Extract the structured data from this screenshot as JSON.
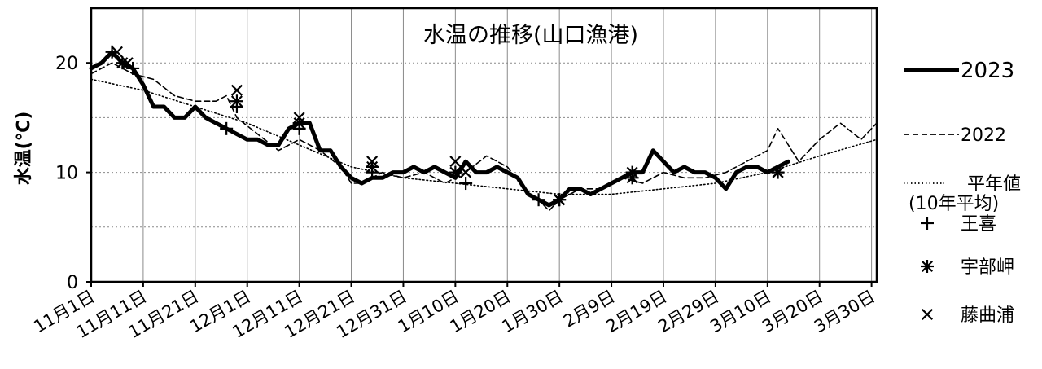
{
  "chart_data": {
    "type": "line",
    "title": "水温の推移(山口漁港)",
    "ylabel": "水温(℃)",
    "xlabel": "",
    "ylim": [
      0,
      25
    ],
    "yticks": [
      0,
      10,
      20
    ],
    "xlim": [
      0,
      151
    ],
    "x_tick_labels": [
      "11月1日",
      "11月11日",
      "11月21日",
      "12月1日",
      "12月11日",
      "12月21日",
      "12月31日",
      "1月10日",
      "1月20日",
      "1月30日",
      "2月9日",
      "2月19日",
      "2月29日",
      "3月10日",
      "3月20日",
      "3月30日"
    ],
    "x_tick_days": [
      0,
      10,
      20,
      30,
      40,
      50,
      60,
      70,
      80,
      90,
      100,
      110,
      120,
      130,
      140,
      150
    ],
    "grid": true,
    "legend_position": "right",
    "series": [
      {
        "name": "2023",
        "style": "solid-thick",
        "color": "#000000",
        "points": [
          [
            0,
            19.5
          ],
          [
            2,
            20.0
          ],
          [
            4,
            21.0
          ],
          [
            6,
            20.0
          ],
          [
            8,
            19.5
          ],
          [
            10,
            18.0
          ],
          [
            12,
            16.0
          ],
          [
            14,
            16.0
          ],
          [
            16,
            15.0
          ],
          [
            18,
            15.0
          ],
          [
            20,
            16.0
          ],
          [
            22,
            15.0
          ],
          [
            24,
            14.5
          ],
          [
            26,
            14.0
          ],
          [
            28,
            13.5
          ],
          [
            30,
            13.0
          ],
          [
            32,
            13.0
          ],
          [
            34,
            12.5
          ],
          [
            36,
            12.5
          ],
          [
            38,
            14.0
          ],
          [
            40,
            14.5
          ],
          [
            42,
            14.5
          ],
          [
            44,
            12.0
          ],
          [
            46,
            12.0
          ],
          [
            48,
            10.5
          ],
          [
            50,
            9.5
          ],
          [
            52,
            9.0
          ],
          [
            54,
            9.5
          ],
          [
            56,
            9.5
          ],
          [
            58,
            10.0
          ],
          [
            60,
            10.0
          ],
          [
            62,
            10.5
          ],
          [
            64,
            10.0
          ],
          [
            66,
            10.5
          ],
          [
            68,
            10.0
          ],
          [
            70,
            9.5
          ],
          [
            72,
            11.0
          ],
          [
            74,
            10.0
          ],
          [
            76,
            10.0
          ],
          [
            78,
            10.5
          ],
          [
            80,
            10.0
          ],
          [
            82,
            9.5
          ],
          [
            84,
            8.0
          ],
          [
            86,
            7.5
          ],
          [
            88,
            7.0
          ],
          [
            90,
            7.5
          ],
          [
            92,
            8.5
          ],
          [
            94,
            8.5
          ],
          [
            96,
            8.0
          ],
          [
            98,
            8.5
          ],
          [
            100,
            9.0
          ],
          [
            102,
            9.5
          ],
          [
            104,
            10.0
          ],
          [
            106,
            10.0
          ],
          [
            108,
            12.0
          ],
          [
            110,
            11.0
          ],
          [
            112,
            10.0
          ],
          [
            114,
            10.5
          ],
          [
            116,
            10.0
          ],
          [
            118,
            10.0
          ],
          [
            120,
            9.5
          ],
          [
            122,
            8.5
          ],
          [
            124,
            10.0
          ],
          [
            126,
            10.5
          ],
          [
            128,
            10.5
          ],
          [
            130,
            10.0
          ],
          [
            132,
            10.5
          ],
          [
            134,
            11.0
          ]
        ]
      },
      {
        "name": "2022",
        "style": "dashed",
        "color": "#000000",
        "points": [
          [
            0,
            19.0
          ],
          [
            4,
            20.0
          ],
          [
            8,
            19.0
          ],
          [
            12,
            18.5
          ],
          [
            16,
            17.0
          ],
          [
            20,
            16.5
          ],
          [
            24,
            16.5
          ],
          [
            26,
            17.0
          ],
          [
            28,
            15.0
          ],
          [
            32,
            13.5
          ],
          [
            36,
            12.0
          ],
          [
            40,
            13.0
          ],
          [
            44,
            12.0
          ],
          [
            48,
            10.5
          ],
          [
            50,
            9.0
          ],
          [
            52,
            9.0
          ],
          [
            56,
            10.0
          ],
          [
            60,
            9.5
          ],
          [
            64,
            10.0
          ],
          [
            68,
            9.0
          ],
          [
            72,
            10.0
          ],
          [
            76,
            11.5
          ],
          [
            80,
            10.5
          ],
          [
            84,
            8.0
          ],
          [
            86,
            7.5
          ],
          [
            88,
            6.5
          ],
          [
            90,
            7.5
          ],
          [
            94,
            8.5
          ],
          [
            98,
            8.5
          ],
          [
            102,
            9.5
          ],
          [
            106,
            9.0
          ],
          [
            110,
            10.0
          ],
          [
            114,
            9.5
          ],
          [
            118,
            9.5
          ],
          [
            122,
            10.0
          ],
          [
            126,
            11.0
          ],
          [
            130,
            12.0
          ],
          [
            132,
            14.0
          ],
          [
            134,
            12.5
          ],
          [
            136,
            11.0
          ],
          [
            140,
            13.0
          ],
          [
            144,
            14.5
          ],
          [
            148,
            13.0
          ],
          [
            151,
            14.5
          ]
        ]
      },
      {
        "name": "平年値",
        "sublabel": "(10年平均)",
        "style": "dotted",
        "color": "#000000",
        "points": [
          [
            0,
            18.5
          ],
          [
            10,
            17.5
          ],
          [
            20,
            16.0
          ],
          [
            30,
            14.5
          ],
          [
            40,
            12.5
          ],
          [
            50,
            10.5
          ],
          [
            60,
            9.5
          ],
          [
            70,
            9.0
          ],
          [
            80,
            8.5
          ],
          [
            90,
            8.0
          ],
          [
            100,
            8.0
          ],
          [
            110,
            8.5
          ],
          [
            120,
            9.0
          ],
          [
            130,
            10.0
          ],
          [
            140,
            11.5
          ],
          [
            151,
            13.0
          ]
        ]
      },
      {
        "name": "王喜",
        "style": "marker-plus",
        "color": "#000000",
        "points": [
          [
            4,
            21.0
          ],
          [
            8,
            19.5
          ],
          [
            26,
            14.0
          ],
          [
            28,
            16.0
          ],
          [
            40,
            14.0
          ],
          [
            54,
            10.0
          ],
          [
            72,
            9.0
          ],
          [
            86,
            7.5
          ],
          [
            90,
            7.5
          ],
          [
            104,
            10.0
          ]
        ]
      },
      {
        "name": "宇部岬",
        "style": "marker-asterisk",
        "color": "#000000",
        "points": [
          [
            6,
            20.0
          ],
          [
            28,
            16.5
          ],
          [
            40,
            14.5
          ],
          [
            54,
            10.5
          ],
          [
            70,
            10.0
          ],
          [
            90,
            7.5
          ],
          [
            104,
            9.5
          ],
          [
            132,
            10.0
          ]
        ]
      },
      {
        "name": "藤曲浦",
        "style": "marker-x",
        "color": "#000000",
        "points": [
          [
            5,
            21.0
          ],
          [
            7,
            20.0
          ],
          [
            28,
            17.5
          ],
          [
            40,
            15.0
          ],
          [
            54,
            11.0
          ],
          [
            70,
            11.0
          ],
          [
            72,
            10.0
          ],
          [
            90,
            7.5
          ],
          [
            104,
            10.0
          ],
          [
            132,
            10.0
          ]
        ]
      }
    ]
  }
}
